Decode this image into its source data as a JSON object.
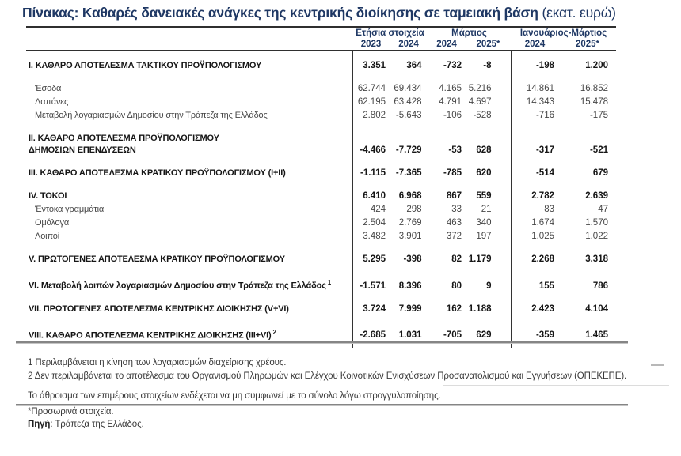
{
  "title": {
    "text": "Πίνακας: Καθαρές δανειακές ανάγκες της κεντρικής διοίκησης σε ταμειακή βάση",
    "unit": " (εκατ. ευρώ)"
  },
  "table": {
    "column_groups": [
      {
        "label": "Ετήσια στοιχεία",
        "years": [
          "2023",
          "2024"
        ]
      },
      {
        "label": "Μάρτιος",
        "years": [
          "2024",
          "2025*"
        ]
      },
      {
        "label": "Ιανουάριος-Μάρτιος",
        "years": [
          "2024",
          "2025*"
        ]
      }
    ],
    "rows": [
      {
        "type": "section",
        "gap": false,
        "label": "Ι. ΚΑΘΑΡΟ ΑΠΟΤΕΛΕΣΜΑ ΤΑΚΤΙΚΟΥ ΠΡΟΫΠΟΛΟΓΙΣΜΟΥ",
        "values": [
          "3.351",
          "364",
          "-732",
          "-8",
          "-198",
          "1.200"
        ]
      },
      {
        "type": "sub",
        "gap": true,
        "label": "Έσοδα",
        "values": [
          "62.744",
          "69.434",
          "4.165",
          "5.216",
          "14.861",
          "16.852"
        ]
      },
      {
        "type": "sub",
        "gap": false,
        "label": "Δαπάνες",
        "values": [
          "62.195",
          "63.428",
          "4.791",
          "4.697",
          "14.343",
          "15.478"
        ]
      },
      {
        "type": "sub",
        "gap": false,
        "label": "Μεταβολή λογαριασμών Δημοσίου στην Τράπεζα της Ελλάδος",
        "values": [
          "2.802",
          "-5.643",
          "-106",
          "-528",
          "-716",
          "-175"
        ]
      },
      {
        "type": "section",
        "gap": true,
        "label": "ΙΙ. ΚΑΘΑΡΟ ΑΠΟΤΕΛΕΣΜΑ ΠΡΟΫΠΟΛΟΓΙΣΜΟΥ",
        "label2": "ΔΗΜΟΣΙΩΝ ΕΠΕΝΔΥΣΕΩΝ",
        "values": [
          "-4.466",
          "-7.729",
          "-53",
          "628",
          "-317",
          "-521"
        ]
      },
      {
        "type": "section",
        "gap": true,
        "label": "ΙΙΙ. ΚΑΘΑΡΟ ΑΠΟΤΕΛΕΣΜΑ ΚΡΑΤΙΚΟΥ ΠΡΟΫΠΟΛΟΓΙΣΜΟΥ (Ι+ΙΙ)",
        "values": [
          "-1.115",
          "-7.365",
          "-785",
          "620",
          "-514",
          "679"
        ]
      },
      {
        "type": "section",
        "gap": true,
        "label": "ΙV. ΤΟΚΟΙ",
        "values": [
          "6.410",
          "6.968",
          "867",
          "559",
          "2.782",
          "2.639"
        ]
      },
      {
        "type": "sub",
        "gap": false,
        "label": "Έντοκα γραμμάτια",
        "values": [
          "424",
          "298",
          "33",
          "21",
          "83",
          "47"
        ]
      },
      {
        "type": "sub",
        "gap": false,
        "label": "Ομόλογα",
        "values": [
          "2.504",
          "2.769",
          "463",
          "340",
          "1.674",
          "1.570"
        ]
      },
      {
        "type": "sub",
        "gap": false,
        "label": "Λοιποί",
        "values": [
          "3.482",
          "3.901",
          "372",
          "197",
          "1.025",
          "1.022"
        ]
      },
      {
        "type": "section",
        "gap": true,
        "label": "V. ΠΡΩΤΟΓΕΝΕΣ ΑΠΟΤΕΛΕΣΜΑ ΚΡΑΤΙΚΟΥ ΠΡΟΫΠΟΛΟΓΙΣΜΟΥ",
        "values": [
          "5.295",
          "-398",
          "82",
          "1.179",
          "2.268",
          "3.318"
        ]
      },
      {
        "type": "section",
        "gap": true,
        "label": "VΙ. Μεταβολή λοιπών λογαριασμών Δημοσίου στην Τράπεζα της Ελλάδος",
        "sup": "1",
        "values": [
          "-1.571",
          "8.396",
          "80",
          "9",
          "155",
          "786"
        ]
      },
      {
        "type": "section",
        "gap": true,
        "label": "VΙΙ. ΠΡΩΤΟΓΕΝΕΣ ΑΠΟΤΕΛΕΣΜΑ ΚΕΝΤΡΙΚΗΣ ΔΙΟΙΚΗΣΗΣ (V+VΙ)",
        "values": [
          "3.724",
          "7.999",
          "162",
          "1.188",
          "2.423",
          "4.104"
        ]
      },
      {
        "type": "section",
        "gap": true,
        "label": "VΙΙΙ. ΚΑΘΑΡΟ ΑΠΟΤΕΛΕΣΜΑ ΚΕΝΤΡΙΚΗΣ ΔΙΟΙΚΗΣΗΣ (ΙΙΙ+VΙ)",
        "sup": "2",
        "values": [
          "-2.685",
          "1.031",
          "-705",
          "629",
          "-359",
          "1.465"
        ]
      }
    ]
  },
  "footnotes": {
    "fn1": "1 Περιλαμβάνεται η κίνηση των λογαριασμών διαχείρισης χρέους.",
    "fn2": "2 Δεν περιλαμβάνεται το αποτέλεσμα του Οργανισμού Πληρωμών και Ελέγχου Κοινοτικών Ενισχύσεων Προσανατολισμού και Εγγυήσεων (ΟΠΕΚΕΠΕ).",
    "rounding_note": "Το άθροισμα των επιμέρους στοιχείων ενδέχεται να μη συμφωνεί με το σύνολο λόγω στρογγυλοποίησης.",
    "provisional_note": "*Προσωρινά στοιχεία.",
    "source_label": "Πηγή",
    "source_text": ": Τράπεζα της Ελλάδος."
  },
  "colors": {
    "accent_navy": "#1f3864",
    "rule_gray": "#858585",
    "body_text": "#3a3a3a"
  }
}
